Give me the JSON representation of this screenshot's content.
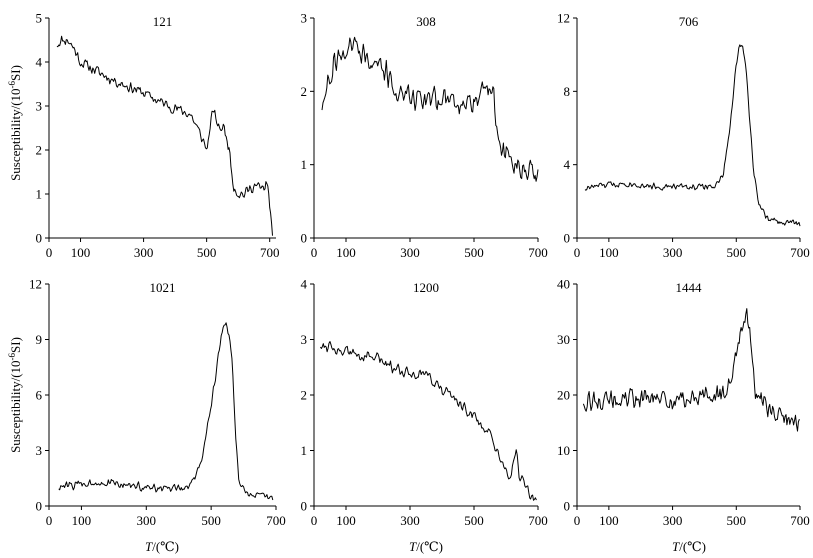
{
  "figure": {
    "ylabel_prefix": "Susceptibility/(10",
    "ylabel_exp": "-6",
    "ylabel_suffix": "SI)",
    "xlabel_var": "T",
    "xlabel_unit": "/(℃)"
  },
  "chart_data": [
    {
      "type": "line",
      "title": "121",
      "xlim": [
        0,
        720
      ],
      "ylim": [
        0,
        5
      ],
      "x_ticks": [
        0,
        100,
        300,
        500,
        700
      ],
      "y_ticks": [
        0,
        1,
        2,
        3,
        4,
        5
      ],
      "x_tick_labels": [
        "0",
        "100",
        "300",
        "500",
        "700"
      ],
      "y_tick_labels": [
        "0",
        "1",
        "2",
        "3",
        "4",
        "5"
      ],
      "anchors": [
        [
          25,
          4.4
        ],
        [
          40,
          4.5
        ],
        [
          60,
          4.5
        ],
        [
          80,
          4.3
        ],
        [
          100,
          4.0
        ],
        [
          150,
          3.8
        ],
        [
          200,
          3.6
        ],
        [
          250,
          3.45
        ],
        [
          300,
          3.3
        ],
        [
          350,
          3.1
        ],
        [
          400,
          2.95
        ],
        [
          450,
          2.8
        ],
        [
          490,
          2.2
        ],
        [
          500,
          2.0
        ],
        [
          520,
          2.9
        ],
        [
          540,
          2.5
        ],
        [
          555,
          2.5
        ],
        [
          570,
          2.1
        ],
        [
          585,
          1.2
        ],
        [
          600,
          1.0
        ],
        [
          620,
          1.0
        ],
        [
          650,
          1.2
        ],
        [
          680,
          1.1
        ],
        [
          695,
          1.3
        ],
        [
          700,
          0.6
        ],
        [
          710,
          0.1
        ]
      ],
      "noise": 0.15,
      "seed": 11
    },
    {
      "type": "line",
      "title": "308",
      "xlim": [
        0,
        700
      ],
      "ylim": [
        0,
        3
      ],
      "x_ticks": [
        0,
        100,
        300,
        500,
        700
      ],
      "y_ticks": [
        0,
        1,
        2,
        3
      ],
      "x_tick_labels": [
        "0",
        "100",
        "300",
        "500",
        "700"
      ],
      "y_tick_labels": [
        "0",
        "1",
        "2",
        "3"
      ],
      "anchors": [
        [
          25,
          1.8
        ],
        [
          40,
          2.0
        ],
        [
          60,
          2.4
        ],
        [
          90,
          2.5
        ],
        [
          110,
          2.7
        ],
        [
          140,
          2.6
        ],
        [
          180,
          2.4
        ],
        [
          220,
          2.3
        ],
        [
          250,
          2.0
        ],
        [
          300,
          1.95
        ],
        [
          350,
          1.9
        ],
        [
          400,
          1.9
        ],
        [
          450,
          1.85
        ],
        [
          500,
          1.9
        ],
        [
          530,
          2.0
        ],
        [
          560,
          2.1
        ],
        [
          570,
          1.4
        ],
        [
          590,
          1.2
        ],
        [
          620,
          1.0
        ],
        [
          650,
          0.95
        ],
        [
          680,
          0.9
        ],
        [
          700,
          0.8
        ]
      ],
      "noise": 0.2,
      "seed": 27
    },
    {
      "type": "line",
      "title": "706",
      "xlim": [
        0,
        700
      ],
      "ylim": [
        0,
        12
      ],
      "x_ticks": [
        0,
        100,
        300,
        500,
        700
      ],
      "y_ticks": [
        0,
        4,
        8,
        12
      ],
      "x_tick_labels": [
        "0",
        "100",
        "300",
        "500",
        "700"
      ],
      "y_tick_labels": [
        "0",
        "4",
        "8",
        "12"
      ],
      "anchors": [
        [
          25,
          2.7
        ],
        [
          50,
          2.8
        ],
        [
          100,
          2.9
        ],
        [
          150,
          3.0
        ],
        [
          200,
          2.9
        ],
        [
          250,
          2.8
        ],
        [
          300,
          2.8
        ],
        [
          350,
          2.8
        ],
        [
          400,
          2.8
        ],
        [
          440,
          2.9
        ],
        [
          460,
          3.5
        ],
        [
          480,
          6.0
        ],
        [
          500,
          9.5
        ],
        [
          510,
          10.5
        ],
        [
          520,
          10.5
        ],
        [
          530,
          9.5
        ],
        [
          540,
          7.0
        ],
        [
          555,
          3.5
        ],
        [
          570,
          2.0
        ],
        [
          590,
          1.2
        ],
        [
          620,
          0.9
        ],
        [
          650,
          0.8
        ],
        [
          680,
          0.9
        ],
        [
          700,
          0.7
        ]
      ],
      "noise": 0.22,
      "seed": 33
    },
    {
      "type": "line",
      "title": "1021",
      "xlim": [
        0,
        700
      ],
      "ylim": [
        0,
        12
      ],
      "x_ticks": [
        0,
        100,
        300,
        500,
        700
      ],
      "y_ticks": [
        0,
        3,
        6,
        9,
        12
      ],
      "x_tick_labels": [
        "0",
        "100",
        "300",
        "500",
        "700"
      ],
      "y_tick_labels": [
        "0",
        "3",
        "6",
        "9",
        "12"
      ],
      "anchors": [
        [
          30,
          1.0
        ],
        [
          100,
          1.2
        ],
        [
          150,
          1.3
        ],
        [
          200,
          1.2
        ],
        [
          250,
          1.1
        ],
        [
          300,
          1.0
        ],
        [
          350,
          0.9
        ],
        [
          400,
          0.9
        ],
        [
          430,
          1.0
        ],
        [
          450,
          1.5
        ],
        [
          470,
          2.5
        ],
        [
          490,
          4.5
        ],
        [
          510,
          6.5
        ],
        [
          525,
          8.5
        ],
        [
          535,
          9.5
        ],
        [
          545,
          9.8
        ],
        [
          555,
          9.3
        ],
        [
          565,
          8.0
        ],
        [
          575,
          4.0
        ],
        [
          585,
          1.5
        ],
        [
          600,
          0.8
        ],
        [
          650,
          0.5
        ],
        [
          690,
          0.4
        ]
      ],
      "noise": 0.28,
      "seed": 44
    },
    {
      "type": "line",
      "title": "1200",
      "xlim": [
        0,
        700
      ],
      "ylim": [
        0,
        4
      ],
      "x_ticks": [
        0,
        100,
        300,
        500,
        700
      ],
      "y_ticks": [
        0,
        1,
        2,
        3,
        4
      ],
      "x_tick_labels": [
        "0",
        "100",
        "300",
        "500",
        "700"
      ],
      "y_tick_labels": [
        "0",
        "1",
        "2",
        "3",
        "4"
      ],
      "anchors": [
        [
          20,
          2.9
        ],
        [
          50,
          2.9
        ],
        [
          80,
          2.8
        ],
        [
          120,
          2.75
        ],
        [
          150,
          2.7
        ],
        [
          200,
          2.65
        ],
        [
          250,
          2.5
        ],
        [
          300,
          2.4
        ],
        [
          350,
          2.4
        ],
        [
          400,
          2.1
        ],
        [
          450,
          1.9
        ],
        [
          500,
          1.6
        ],
        [
          550,
          1.3
        ],
        [
          580,
          0.8
        ],
        [
          600,
          0.6
        ],
        [
          615,
          0.5
        ],
        [
          625,
          0.9
        ],
        [
          632,
          1.1
        ],
        [
          640,
          0.6
        ],
        [
          660,
          0.3
        ],
        [
          680,
          0.2
        ],
        [
          695,
          0.1
        ]
      ],
      "noise": 0.13,
      "seed": 55
    },
    {
      "type": "line",
      "title": "1444",
      "xlim": [
        0,
        700
      ],
      "ylim": [
        0,
        40
      ],
      "x_ticks": [
        0,
        100,
        300,
        500,
        700
      ],
      "y_ticks": [
        0,
        10,
        20,
        30,
        40
      ],
      "x_tick_labels": [
        "0",
        "100",
        "300",
        "500",
        "700"
      ],
      "y_tick_labels": [
        "0",
        "10",
        "20",
        "30",
        "40"
      ],
      "anchors": [
        [
          20,
          19
        ],
        [
          100,
          19
        ],
        [
          200,
          19.5
        ],
        [
          300,
          19
        ],
        [
          400,
          19.5
        ],
        [
          450,
          20
        ],
        [
          480,
          22
        ],
        [
          500,
          27
        ],
        [
          515,
          33
        ],
        [
          525,
          35
        ],
        [
          540,
          33
        ],
        [
          552,
          25
        ],
        [
          560,
          20
        ],
        [
          600,
          18
        ],
        [
          650,
          16
        ],
        [
          680,
          15
        ],
        [
          700,
          16
        ]
      ],
      "noise": 2.2,
      "seed": 66
    }
  ]
}
